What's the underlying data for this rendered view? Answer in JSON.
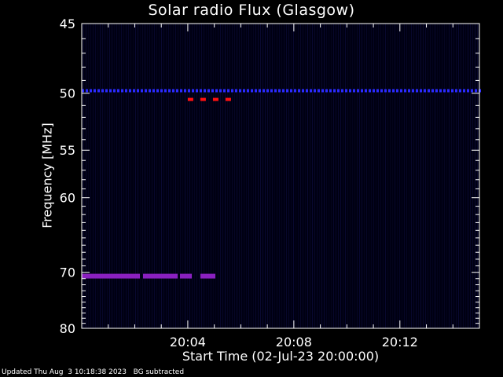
{
  "chart_data": {
    "type": "heatmap",
    "title": "Solar radio Flux (Glasgow)",
    "ylabel": "Frequency [MHz]",
    "xlabel": "Start Time (02-Jul-23 20:00:00)",
    "y_axis": {
      "range": [
        45,
        80
      ],
      "ticks": [
        45,
        50,
        55,
        60,
        70,
        80
      ],
      "scale": "reciprocal"
    },
    "x_axis": {
      "range_minutes": [
        0,
        15
      ],
      "ticks": [
        "20:04",
        "20:08",
        "20:12"
      ],
      "tick_minutes": [
        4,
        8,
        12
      ]
    },
    "colorscale": {
      "low": "#000010",
      "mid": "#1010a0",
      "high": "#ff0000"
    },
    "features": [
      {
        "label": "persistent emission",
        "frequency_mhz": 49.8,
        "minutes": [
          0,
          15
        ],
        "color": "#2a2aff"
      },
      {
        "label": "persistent emission",
        "frequency_mhz": 70.6,
        "minutes": [
          0,
          5.0
        ],
        "color": "#8a20c0"
      },
      {
        "label": "burst dashes",
        "frequency_mhz": 50.5,
        "minutes": [
          4.0,
          5.5
        ],
        "color": "#ff1010"
      }
    ]
  },
  "footer": {
    "updated": "Updated Thu Aug  3 10:18:38 2023",
    "note": "BG subtracted"
  }
}
